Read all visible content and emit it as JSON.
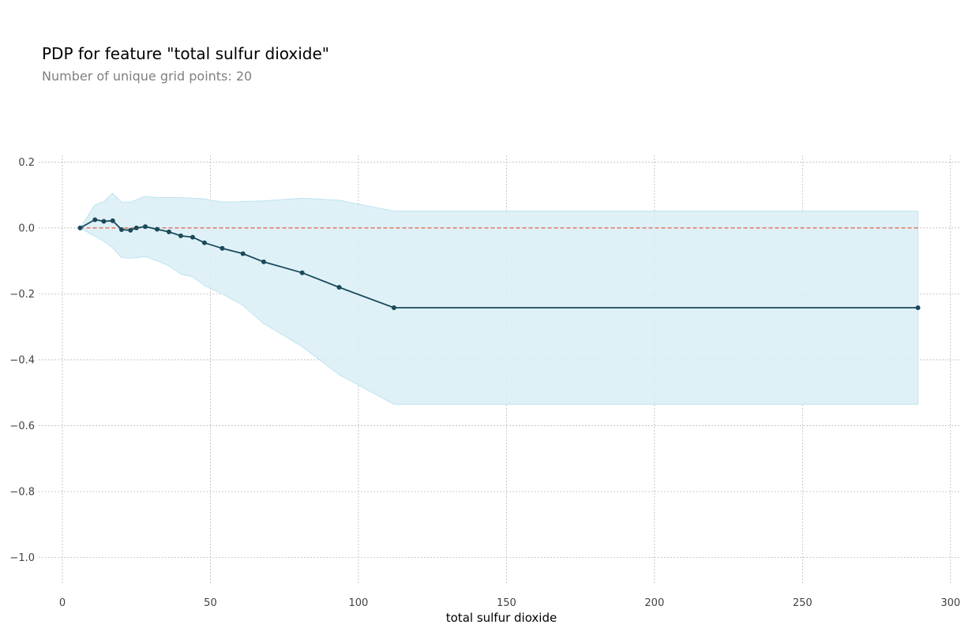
{
  "header": {
    "title": "PDP for feature \"total sulfur dioxide\"",
    "subtitle": "Number of unique grid points: 20"
  },
  "chart_data": {
    "type": "line",
    "xlabel": "total sulfur dioxide",
    "ylabel": "",
    "xlim": [
      -8,
      303
    ],
    "ylim": [
      -1.08,
      0.22
    ],
    "x_ticks": [
      0,
      50,
      100,
      150,
      200,
      250,
      300
    ],
    "x_tick_labels": [
      "0",
      "50",
      "100",
      "150",
      "200",
      "250",
      "300"
    ],
    "y_ticks": [
      0.2,
      0.0,
      -0.2,
      -0.4,
      -0.6,
      -0.8,
      -1.0
    ],
    "y_tick_labels": [
      "0.2",
      "0.0",
      "−0.2",
      "−0.4",
      "−0.6",
      "−0.8",
      "−1.0"
    ],
    "grid": true,
    "colors": {
      "line": "#1a4a5a",
      "band": "#d9eef6",
      "band_edge": "#bde3ef",
      "baseline": "#e0604a",
      "grid": "#b0b0b0"
    },
    "series": [
      {
        "x": [
          6,
          11,
          14,
          17,
          20,
          23,
          25,
          28,
          32,
          36,
          40,
          44,
          48,
          54,
          61,
          68,
          81,
          93.5,
          112,
          289
        ],
        "y": [
          0.0,
          0.025,
          0.02,
          0.022,
          -0.005,
          -0.007,
          0.0,
          0.004,
          -0.004,
          -0.012,
          -0.024,
          -0.028,
          -0.045,
          -0.062,
          -0.078,
          -0.103,
          -0.136,
          -0.18,
          -0.242,
          -0.242
        ]
      }
    ],
    "band": {
      "x": [
        6,
        11,
        14,
        17,
        20,
        23,
        25,
        28,
        32,
        36,
        40,
        44,
        48,
        54,
        61,
        68,
        81,
        93.5,
        112,
        289
      ],
      "upper": [
        0.0,
        0.07,
        0.08,
        0.105,
        0.078,
        0.078,
        0.085,
        0.096,
        0.092,
        0.092,
        0.092,
        0.09,
        0.088,
        0.078,
        0.08,
        0.082,
        0.09,
        0.084,
        0.051,
        0.051
      ],
      "lower": [
        0.0,
        -0.025,
        -0.04,
        -0.06,
        -0.09,
        -0.092,
        -0.09,
        -0.087,
        -0.1,
        -0.115,
        -0.14,
        -0.148,
        -0.175,
        -0.2,
        -0.235,
        -0.29,
        -0.36,
        -0.445,
        -0.535,
        -0.535
      ]
    },
    "baseline": 0.0
  }
}
